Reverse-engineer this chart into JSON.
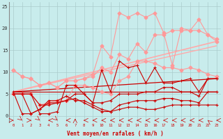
{
  "background_color": "#c8ecec",
  "grid_color": "#aacccc",
  "xlabel": "Vent moyen/en rafales ( km/h )",
  "xlabel_color": "#cc0000",
  "xlim": [
    -0.5,
    23.5
  ],
  "ylim": [
    -1.5,
    26
  ],
  "yticks": [
    0,
    5,
    10,
    15,
    20,
    25
  ],
  "xticks": [
    0,
    1,
    2,
    3,
    4,
    5,
    6,
    7,
    8,
    9,
    10,
    11,
    12,
    13,
    14,
    15,
    16,
    17,
    18,
    19,
    20,
    21,
    22,
    23
  ],
  "trend_lines": [
    {
      "x": [
        0,
        23
      ],
      "y": [
        5.5,
        17.0
      ],
      "color": "#ffaaaa",
      "lw": 1.2
    },
    {
      "x": [
        0,
        23
      ],
      "y": [
        5.5,
        16.0
      ],
      "color": "#ffaaaa",
      "lw": 1.0
    },
    {
      "x": [
        0,
        23
      ],
      "y": [
        5.5,
        8.5
      ],
      "color": "#cc0000",
      "lw": 0.9
    },
    {
      "x": [
        0,
        23
      ],
      "y": [
        5.5,
        5.5
      ],
      "color": "#cc0000",
      "lw": 0.8
    }
  ],
  "pink_line1_x": [
    0,
    1,
    2,
    3,
    4,
    5,
    6,
    7,
    8,
    9,
    10,
    11,
    12,
    13,
    14,
    15,
    16,
    17,
    18,
    19,
    20,
    21,
    22,
    23
  ],
  "pink_line1_y": [
    10.5,
    9.0,
    8.5,
    7.0,
    7.5,
    6.5,
    8.0,
    8.0,
    8.5,
    9.0,
    11.0,
    10.0,
    14.0,
    13.0,
    16.5,
    14.5,
    18.5,
    18.5,
    19.5,
    19.5,
    19.5,
    19.5,
    18.5,
    17.0
  ],
  "pink_line1_color": "#ff9999",
  "pink_line2_x": [
    0,
    1,
    2,
    3,
    4,
    5,
    6,
    7,
    8,
    9,
    10,
    11,
    12,
    13,
    14,
    15,
    16,
    17,
    18,
    19,
    20,
    21,
    22,
    23
  ],
  "pink_line2_y": [
    5.0,
    5.0,
    5.0,
    2.5,
    3.0,
    3.5,
    3.5,
    7.0,
    7.0,
    6.5,
    5.5,
    5.0,
    8.0,
    9.0,
    12.5,
    12.5,
    12.0,
    11.0,
    11.0,
    10.5,
    11.0,
    10.5,
    9.5,
    9.0
  ],
  "pink_line2_color": "#ff9999",
  "pink_jagged_x": [
    0,
    1,
    2,
    3,
    4,
    5,
    6,
    7,
    8,
    9,
    10,
    11,
    12,
    13,
    14,
    15,
    16,
    17,
    18,
    19,
    20,
    21,
    22,
    23
  ],
  "pink_jagged_y": [
    10.5,
    9.0,
    8.5,
    7.0,
    7.5,
    6.5,
    8.0,
    8.0,
    8.5,
    9.5,
    16.0,
    13.5,
    23.5,
    22.5,
    23.5,
    22.5,
    23.5,
    19.0,
    11.5,
    20.0,
    19.5,
    22.0,
    18.5,
    17.5
  ],
  "pink_jagged_color": "#ff9999",
  "red_line1_x": [
    0,
    1,
    2,
    3,
    4,
    5,
    6,
    7,
    8,
    9,
    10,
    11,
    12,
    13,
    14,
    15,
    16,
    17,
    18,
    19,
    20,
    21,
    22,
    23
  ],
  "red_line1_y": [
    5.0,
    5.0,
    5.0,
    0.5,
    0.5,
    1.0,
    7.0,
    7.0,
    5.0,
    3.0,
    10.5,
    5.5,
    12.5,
    11.0,
    11.5,
    7.5,
    11.0,
    7.5,
    7.5,
    8.0,
    8.5,
    5.5,
    8.5,
    8.5
  ],
  "red_line1_color": "#cc0000",
  "red_line2_x": [
    0,
    1,
    2,
    3,
    4,
    5,
    6,
    7,
    8,
    9,
    10,
    11,
    12,
    13,
    14,
    15,
    16,
    17,
    18,
    19,
    20,
    21,
    22,
    23
  ],
  "red_line2_y": [
    5.0,
    5.0,
    5.0,
    2.5,
    2.5,
    3.0,
    3.5,
    5.0,
    5.0,
    3.0,
    3.0,
    3.5,
    5.0,
    5.0,
    5.0,
    5.5,
    5.5,
    6.5,
    6.5,
    5.5,
    5.5,
    4.5,
    8.5,
    8.5
  ],
  "red_line2_color": "#cc0000",
  "red_line3_x": [
    0,
    1,
    2,
    3,
    4,
    5,
    6,
    7,
    8,
    9,
    10,
    11,
    12,
    13,
    14,
    15,
    16,
    17,
    18,
    19,
    20,
    21,
    22,
    23
  ],
  "red_line3_y": [
    5.0,
    5.0,
    0.5,
    1.5,
    3.0,
    3.0,
    3.5,
    4.0,
    3.0,
    2.0,
    1.0,
    1.0,
    1.5,
    2.0,
    2.0,
    1.5,
    1.5,
    2.0,
    2.5,
    2.5,
    2.5,
    2.5,
    2.5,
    2.5
  ],
  "red_line3_color": "#cc0000",
  "red_line4_x": [
    0,
    1,
    2,
    3,
    4,
    5,
    6,
    7,
    8,
    9,
    10,
    11,
    12,
    13,
    14,
    15,
    16,
    17,
    18,
    19,
    20,
    21,
    22,
    23
  ],
  "red_line4_y": [
    5.5,
    0.5,
    0.5,
    1.5,
    3.5,
    3.5,
    4.5,
    3.5,
    3.5,
    2.5,
    1.5,
    1.0,
    2.5,
    3.0,
    3.5,
    3.5,
    3.5,
    4.0,
    4.0,
    3.5,
    3.5,
    3.0,
    5.5,
    5.5
  ],
  "red_line4_color": "#cc0000",
  "wind_dir_x": [
    0,
    1,
    2,
    3,
    4,
    5,
    6,
    7,
    8,
    9,
    10,
    11,
    12,
    13,
    14,
    15,
    16,
    17,
    18,
    19,
    20,
    21,
    22,
    23
  ],
  "wind_dir_angles": [
    90,
    135,
    90,
    135,
    270,
    135,
    270,
    0,
    270,
    270,
    270,
    270,
    270,
    270,
    270,
    270,
    270,
    270,
    270,
    270,
    270,
    270,
    315,
    270
  ]
}
